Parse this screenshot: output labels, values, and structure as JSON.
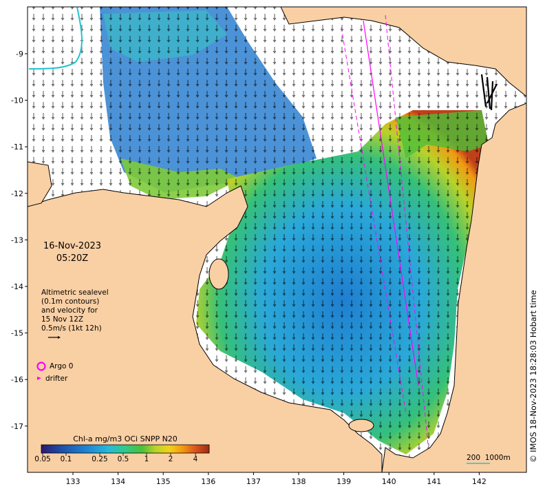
{
  "map": {
    "date": "16-Nov-2023",
    "time": "05:20Z",
    "longitude_ticks": [
      "133",
      "134",
      "135",
      "136",
      "137",
      "138",
      "139",
      "140",
      "141",
      "142"
    ],
    "latitude_ticks": [
      "9",
      "10",
      "11",
      "12",
      "13",
      "14",
      "15",
      "16",
      "17"
    ],
    "latitude_tick_prefix": "-",
    "altimetry_legend": [
      "Altimetric sealevel",
      "(0.1m contours)",
      "and velocity for",
      "15 Nov 12Z",
      "0.5m/s (1kt 12h)"
    ],
    "argo_label": "Argo 0",
    "drifter_label": "drifter",
    "colorbar": {
      "title": "Chl-a mg/m3 OCi SNPP N20",
      "ticks": [
        "0.05",
        "0.1",
        "0.25",
        "0.5",
        "1",
        "2",
        "4"
      ],
      "colors": [
        "#2b1a6e",
        "#1d4fa8",
        "#1f88d6",
        "#27b9d9",
        "#2fc98a",
        "#4cbf3a",
        "#b8d22a",
        "#f2d21b",
        "#f29a12",
        "#d9531e",
        "#9b2a16"
      ]
    },
    "scale_bar": {
      "label1": "200",
      "label2": "1000m"
    },
    "credit": "© IMOS 18-Nov-2023 18:28:03 Hobart time",
    "colors": {
      "land": "#f9cfa4",
      "sea_nodata": "#ffffff",
      "argo": "#ff00ff",
      "track": "#ff00ff",
      "contour": "#22c3cc",
      "coast": "#000000"
    }
  }
}
